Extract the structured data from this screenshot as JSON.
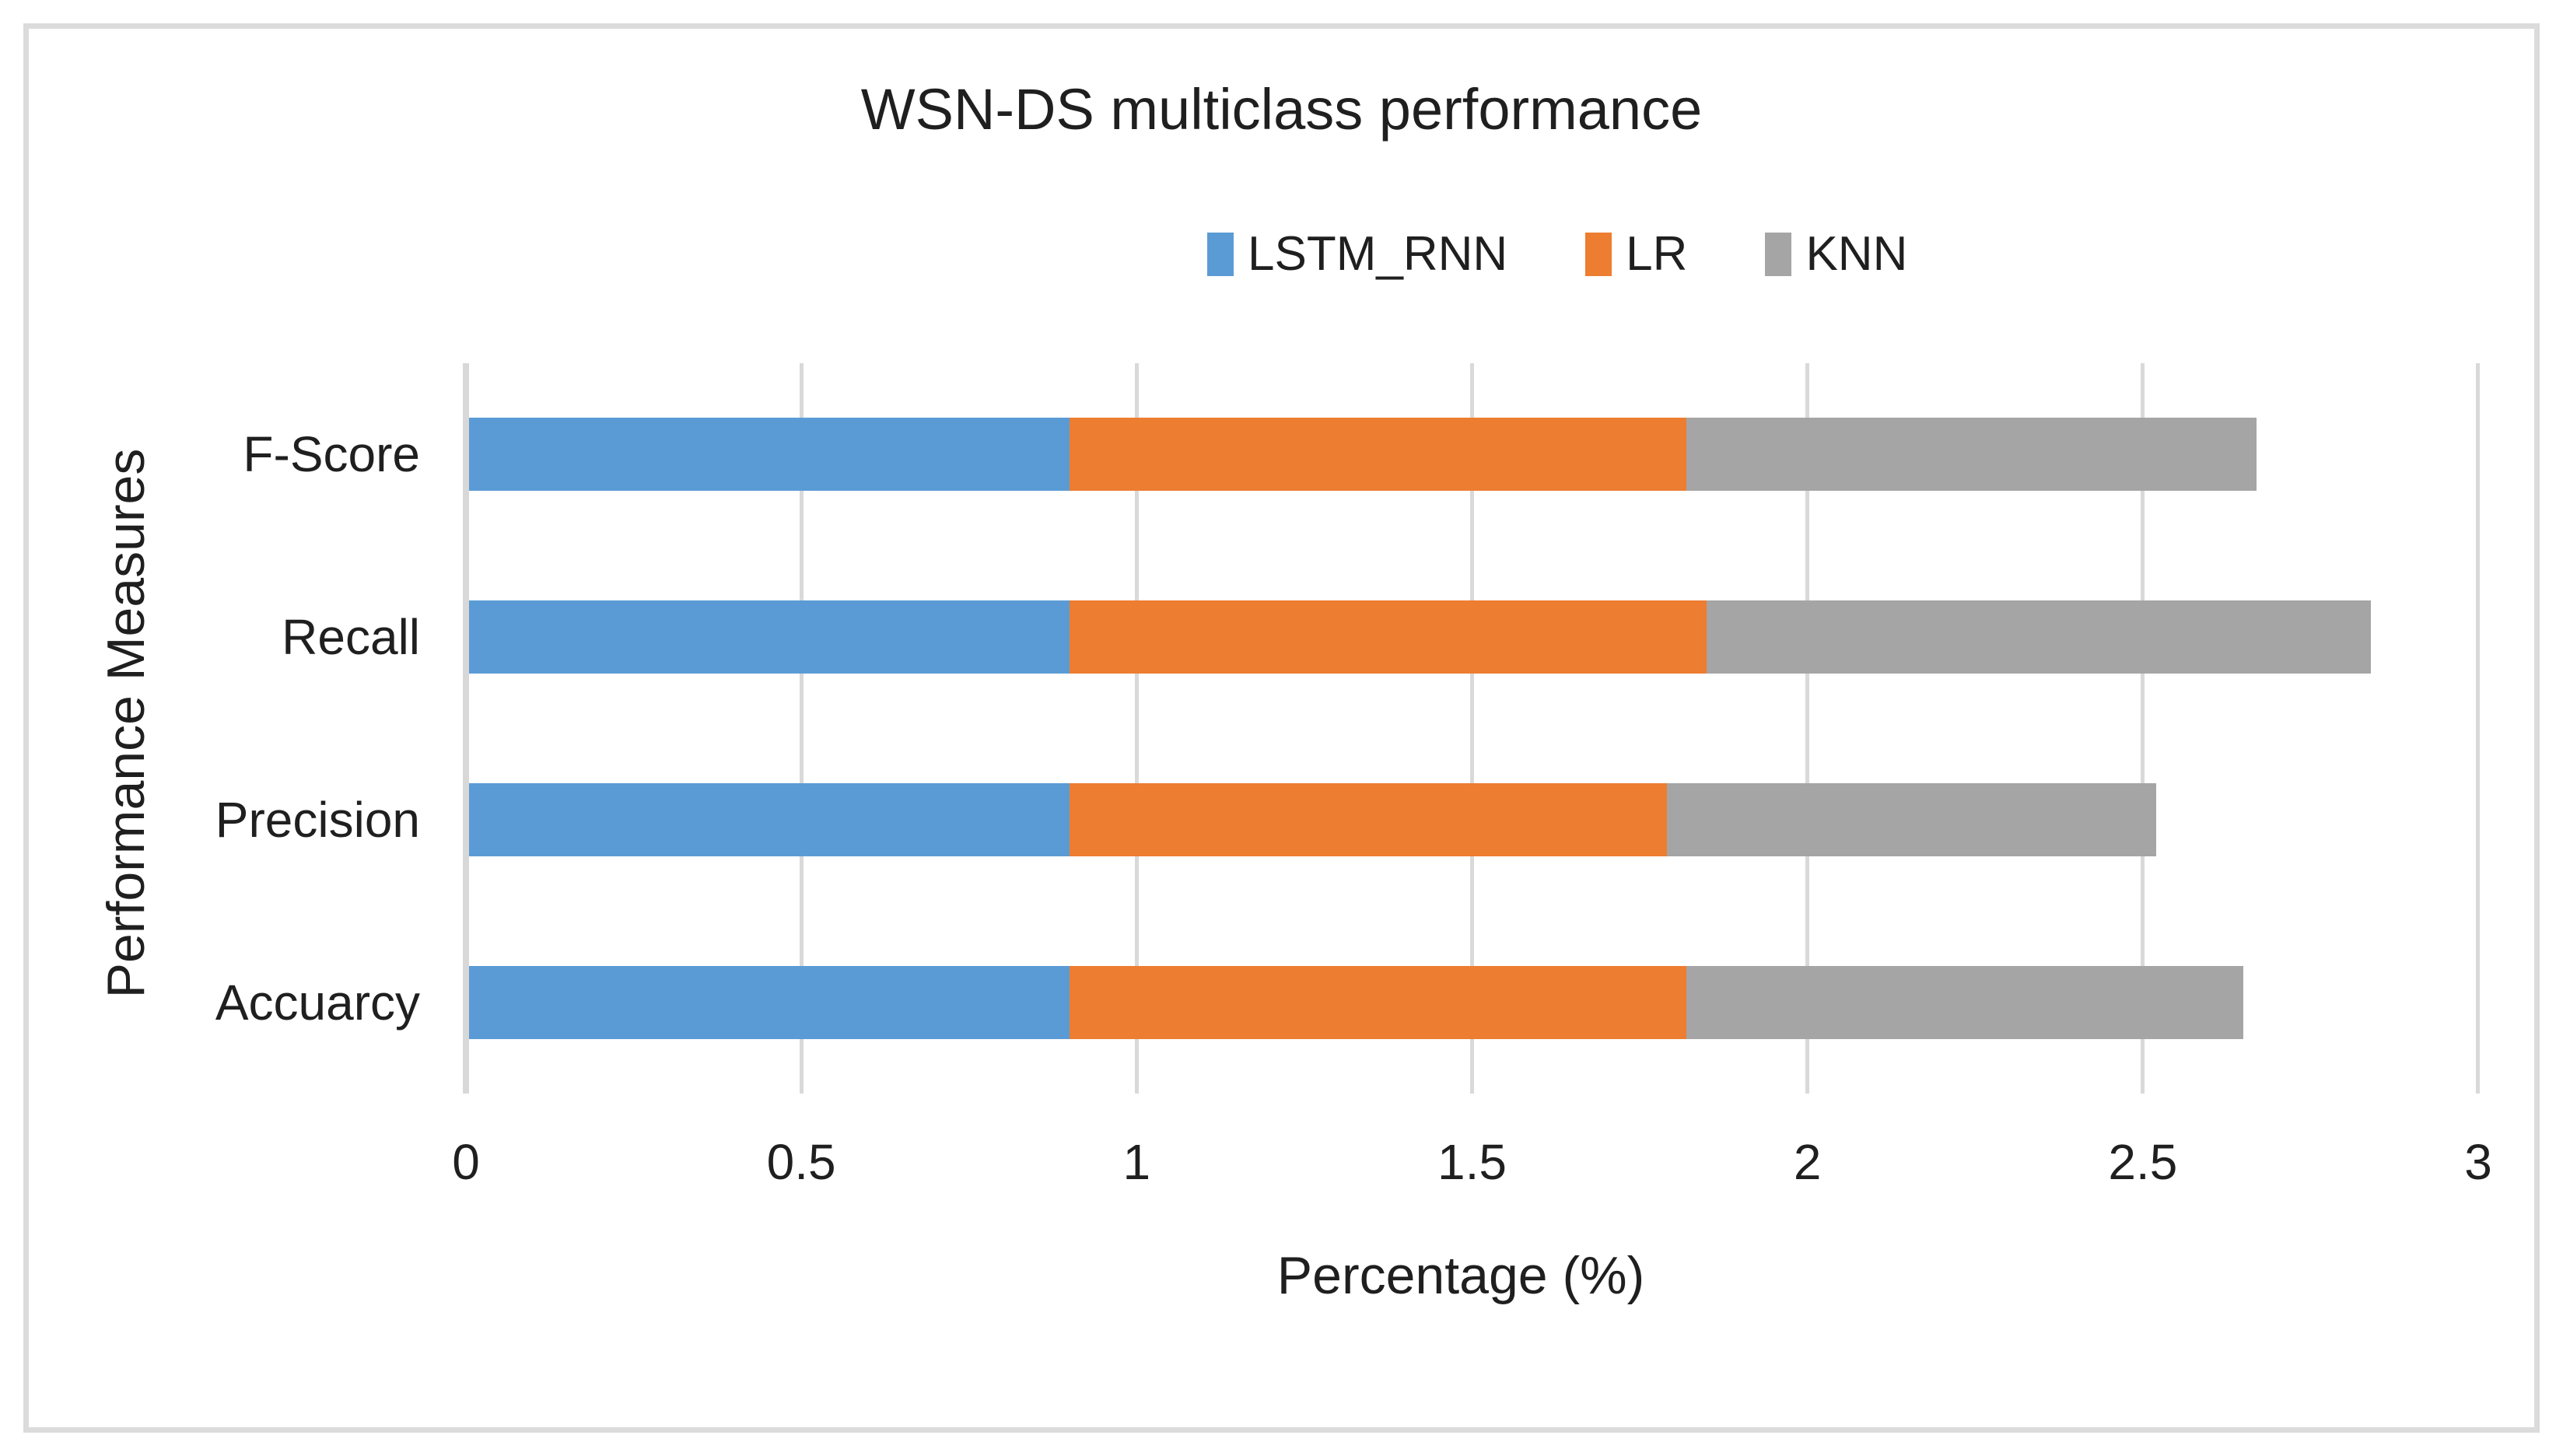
{
  "chart_data": {
    "type": "bar",
    "orientation": "horizontal",
    "stacked": true,
    "title": "WSN-DS multiclass performance",
    "xlabel": "Percentage (%)",
    "ylabel": "Performance Measures",
    "categories": [
      "F-Score",
      "Recall",
      "Precision",
      "Accuarcy"
    ],
    "series": [
      {
        "name": "LSTM_RNN",
        "color": "#5B9BD5",
        "values": [
          0.9,
          0.9,
          0.9,
          0.9
        ]
      },
      {
        "name": "LR",
        "color": "#ED7D31",
        "values": [
          0.92,
          0.95,
          0.89,
          0.92
        ]
      },
      {
        "name": "KNN",
        "color": "#A5A5A5",
        "values": [
          0.85,
          0.99,
          0.73,
          0.83
        ]
      }
    ],
    "xlim": [
      0,
      3
    ],
    "x_ticks": [
      0,
      0.5,
      1,
      1.5,
      2,
      2.5,
      3
    ],
    "x_tick_labels": [
      "0",
      "0.5",
      "1",
      "1.5",
      "2",
      "2.5",
      "3"
    ],
    "grid": "vertical",
    "legend_position": "top"
  },
  "colors": {
    "background": "#FFFFFF",
    "frame_border": "#DBDBDB",
    "gridline": "#D9D9D9",
    "axis_line": "#D8D8D8",
    "text": "#1F1F1F"
  }
}
